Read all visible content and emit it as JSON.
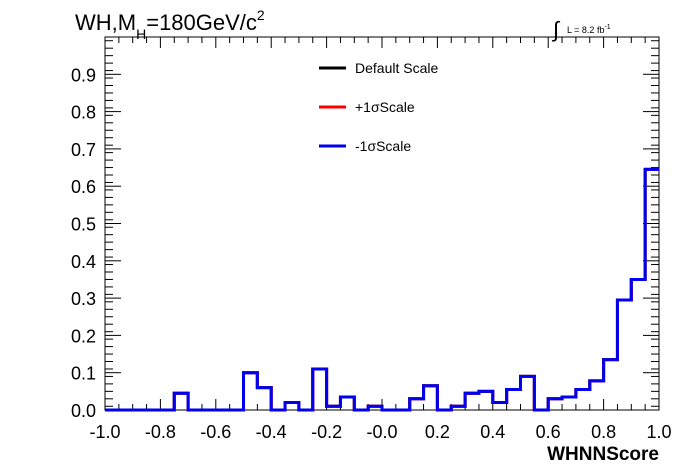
{
  "chart_data": {
    "type": "step",
    "title": {
      "prefix": "WH,M",
      "subscript": "H",
      "suffix": "=180GeV/c",
      "superscript": "2"
    },
    "lumi": {
      "symbol": "∫",
      "text": "L = 8.2 fb",
      "superscript": "-1"
    },
    "xlabel": "WHNNScore",
    "ylabel": "",
    "xlim": [
      -1.0,
      1.0
    ],
    "ylim": [
      0.0,
      1.0
    ],
    "x_ticks": [
      "-1.0",
      "-0.8",
      "-0.6",
      "-0.4",
      "-0.2",
      "-0.0",
      "0.2",
      "0.4",
      "0.6",
      "0.8",
      "1.0"
    ],
    "y_ticks": [
      "0.0",
      "0.1",
      "0.2",
      "0.3",
      "0.4",
      "0.5",
      "0.6",
      "0.7",
      "0.8",
      "0.9"
    ],
    "bin_edges_start": -1.0,
    "bin_width": 0.05,
    "series": [
      {
        "name": "Default Scale",
        "color": "#000000",
        "values": [
          0,
          0,
          0,
          0,
          0,
          0.045,
          0,
          0,
          0,
          0,
          0.1,
          0.06,
          0,
          0.02,
          0,
          0.11,
          0.01,
          0.035,
          0,
          0.01,
          0,
          0,
          0.03,
          0.065,
          0,
          0.01,
          0.045,
          0.05,
          0.02,
          0.055,
          0.09,
          0,
          0.03,
          0.035,
          0.055,
          0.078,
          0.135,
          0.295,
          0.35,
          0.645
        ]
      },
      {
        "name": "+1σScale",
        "color": "#ff0000",
        "values": [
          0,
          0,
          0,
          0,
          0,
          0.045,
          0,
          0,
          0,
          0,
          0.1,
          0.06,
          0,
          0.02,
          0,
          0.11,
          0.01,
          0.035,
          0,
          0.01,
          0,
          0,
          0.03,
          0.065,
          0,
          0.01,
          0.045,
          0.05,
          0.02,
          0.055,
          0.09,
          0,
          0.03,
          0.035,
          0.055,
          0.078,
          0.135,
          0.295,
          0.35,
          0.645
        ]
      },
      {
        "name": "-1σScale",
        "color": "#0000ee",
        "values": [
          0,
          0,
          0,
          0,
          0,
          0.045,
          0,
          0,
          0,
          0,
          0.1,
          0.06,
          0,
          0.02,
          0,
          0.11,
          0.01,
          0.035,
          0,
          0.01,
          0,
          0,
          0.03,
          0.065,
          0,
          0.01,
          0.045,
          0.05,
          0.02,
          0.055,
          0.09,
          0,
          0.03,
          0.035,
          0.055,
          0.078,
          0.135,
          0.295,
          0.35,
          0.645
        ]
      }
    ],
    "legend": "top-center"
  }
}
